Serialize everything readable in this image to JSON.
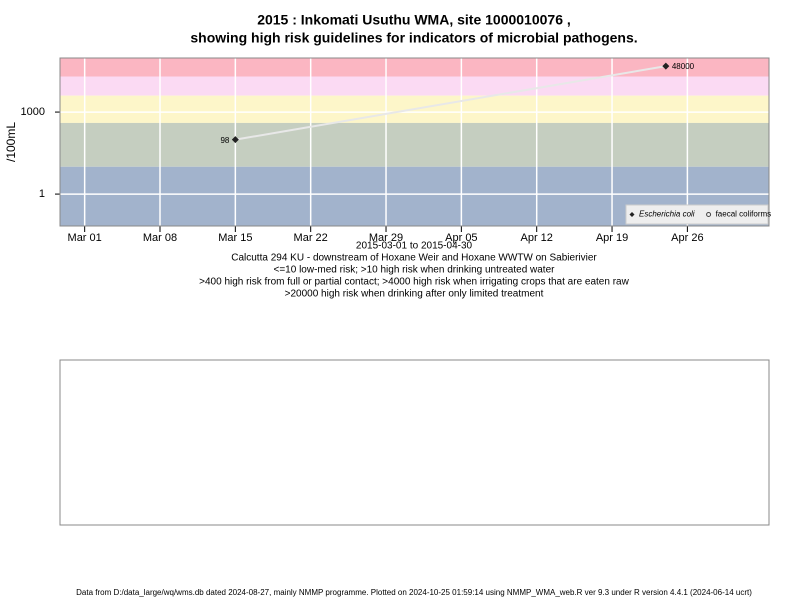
{
  "chart_data": {
    "type": "line",
    "title": [
      "2015 : Inkomati Usuthu WMA, site 1000010076 ,",
      "showing high risk guidelines for indicators of microbial pathogens."
    ],
    "ylabel": "/100mL",
    "log_y": true,
    "grid": true,
    "ylim": [
      0.068,
      95000
    ],
    "yticks": [
      1,
      1000
    ],
    "xlim": [
      "2015-02-26T17:00",
      "2015-05-03T14:00"
    ],
    "xticks": [
      {
        "value": "2015-03-01",
        "label": "Mar 01"
      },
      {
        "value": "2015-03-08",
        "label": "Mar 08"
      },
      {
        "value": "2015-03-15",
        "label": "Mar 15"
      },
      {
        "value": "2015-03-22",
        "label": "Mar 22"
      },
      {
        "value": "2015-03-29",
        "label": "Mar 29"
      },
      {
        "value": "2015-04-05",
        "label": "Apr 05"
      },
      {
        "value": "2015-04-12",
        "label": "Apr 12"
      },
      {
        "value": "2015-04-19",
        "label": "Apr 19"
      },
      {
        "value": "2015-04-26",
        "label": "Apr 26"
      }
    ],
    "bands": [
      {
        "from": 20000,
        "to": 95000,
        "color": "#fbb6c2"
      },
      {
        "from": 4000,
        "to": 20000,
        "color": "#fbdaf3"
      },
      {
        "from": 400,
        "to": 4000,
        "color": "#fdf6c9"
      },
      {
        "from": 10,
        "to": 400,
        "color": "#c5cec0"
      },
      {
        "from": 0.068,
        "to": 10,
        "color": "#a2b3cc"
      }
    ],
    "x": [
      "2015-03-15",
      "2015-04-24"
    ],
    "series": [
      {
        "name": "Escherichia coli",
        "color": "#222222",
        "line_color": "#e8e8e8",
        "marker": "diamond",
        "values": [
          98,
          48000
        ]
      },
      {
        "name": "faecal coliforms",
        "color": "#444444",
        "marker": "open-circle",
        "values": [
          null,
          null
        ]
      }
    ],
    "legend": "bottom-right",
    "notes": [
      "2015-03-01 to 2015-04-30",
      "Calcutta 294 KU - downstream of Hoxane Weir and Hoxane WWTW on Sabierivier",
      "<=10 low-med risk; >10 high risk when drinking untreated water",
      ">400 high risk from full or partial contact; >4000 high risk when irrigating crops that are eaten raw",
      ">20000 high risk when drinking after only limited treatment"
    ],
    "footer": "Data from D:/data_large/wq/wms.db dated 2024-08-27, mainly NMMP programme. Plotted on 2024-10-25 01:59:14 using NMMP_WMA_web.R ver 9.3 under R version 4.4.1 (2024-06-14 ucrt)"
  }
}
